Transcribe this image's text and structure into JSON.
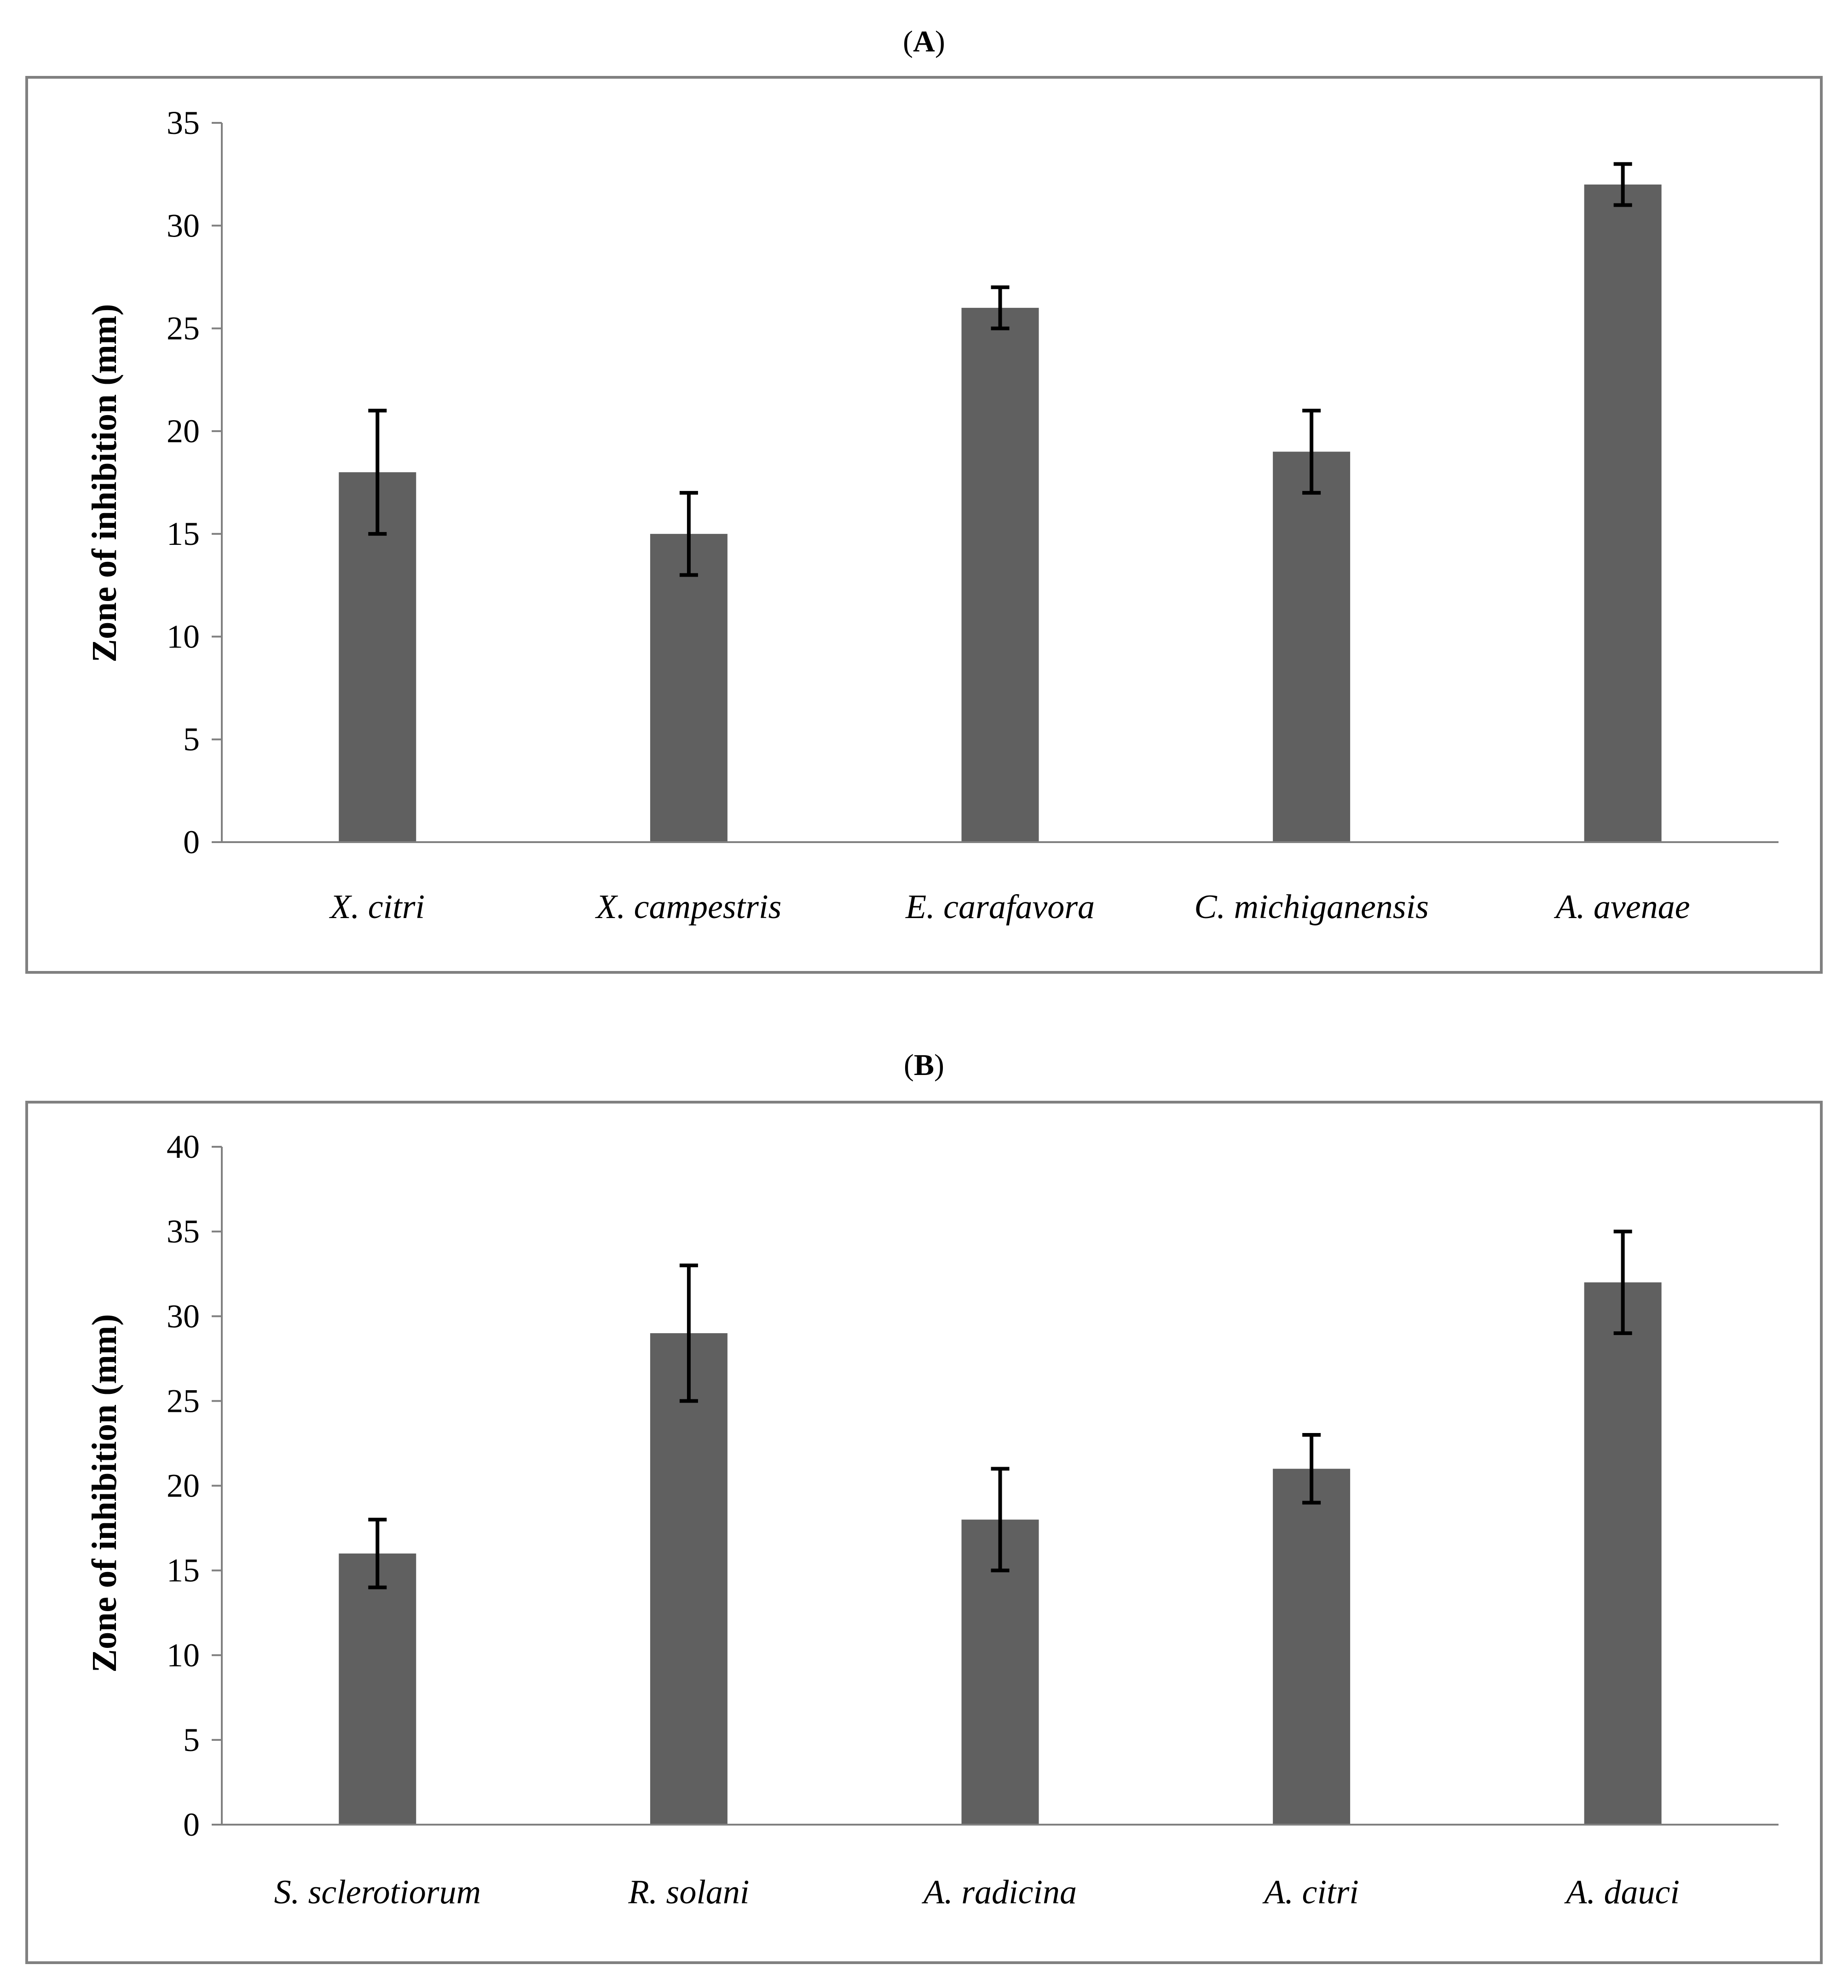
{
  "chart_data": [
    {
      "panel": "A",
      "type": "bar",
      "title": "(A)",
      "title_letter": "A",
      "xlabel": "",
      "ylabel": "Zone of inhibition (mm)",
      "ylim": [
        0,
        35
      ],
      "yticks": [
        0,
        5,
        10,
        15,
        20,
        25,
        30,
        35
      ],
      "categories": [
        "X. citri",
        "X. campestris",
        "E. carafavora",
        "C. michiganensis",
        "A. avenae"
      ],
      "values": [
        18,
        15,
        26,
        19,
        32
      ],
      "errors": [
        3,
        2,
        1,
        2,
        1
      ],
      "bar_color": "#606060",
      "grid": false,
      "legend": "none"
    },
    {
      "panel": "B",
      "type": "bar",
      "title": "(B)",
      "title_letter": "B",
      "xlabel": "",
      "ylabel": "Zone of inhibition (mm)",
      "ylim": [
        0,
        40
      ],
      "yticks": [
        0,
        5,
        10,
        15,
        20,
        25,
        30,
        35,
        40
      ],
      "categories": [
        "S. sclerotiorum",
        "R. solani",
        "A. radicina",
        "A. citri",
        "A. dauci"
      ],
      "values": [
        16,
        29,
        18,
        21,
        32
      ],
      "errors": [
        2,
        4,
        3,
        2,
        3
      ],
      "bar_color": "#606060",
      "grid": false,
      "legend": "none"
    }
  ]
}
